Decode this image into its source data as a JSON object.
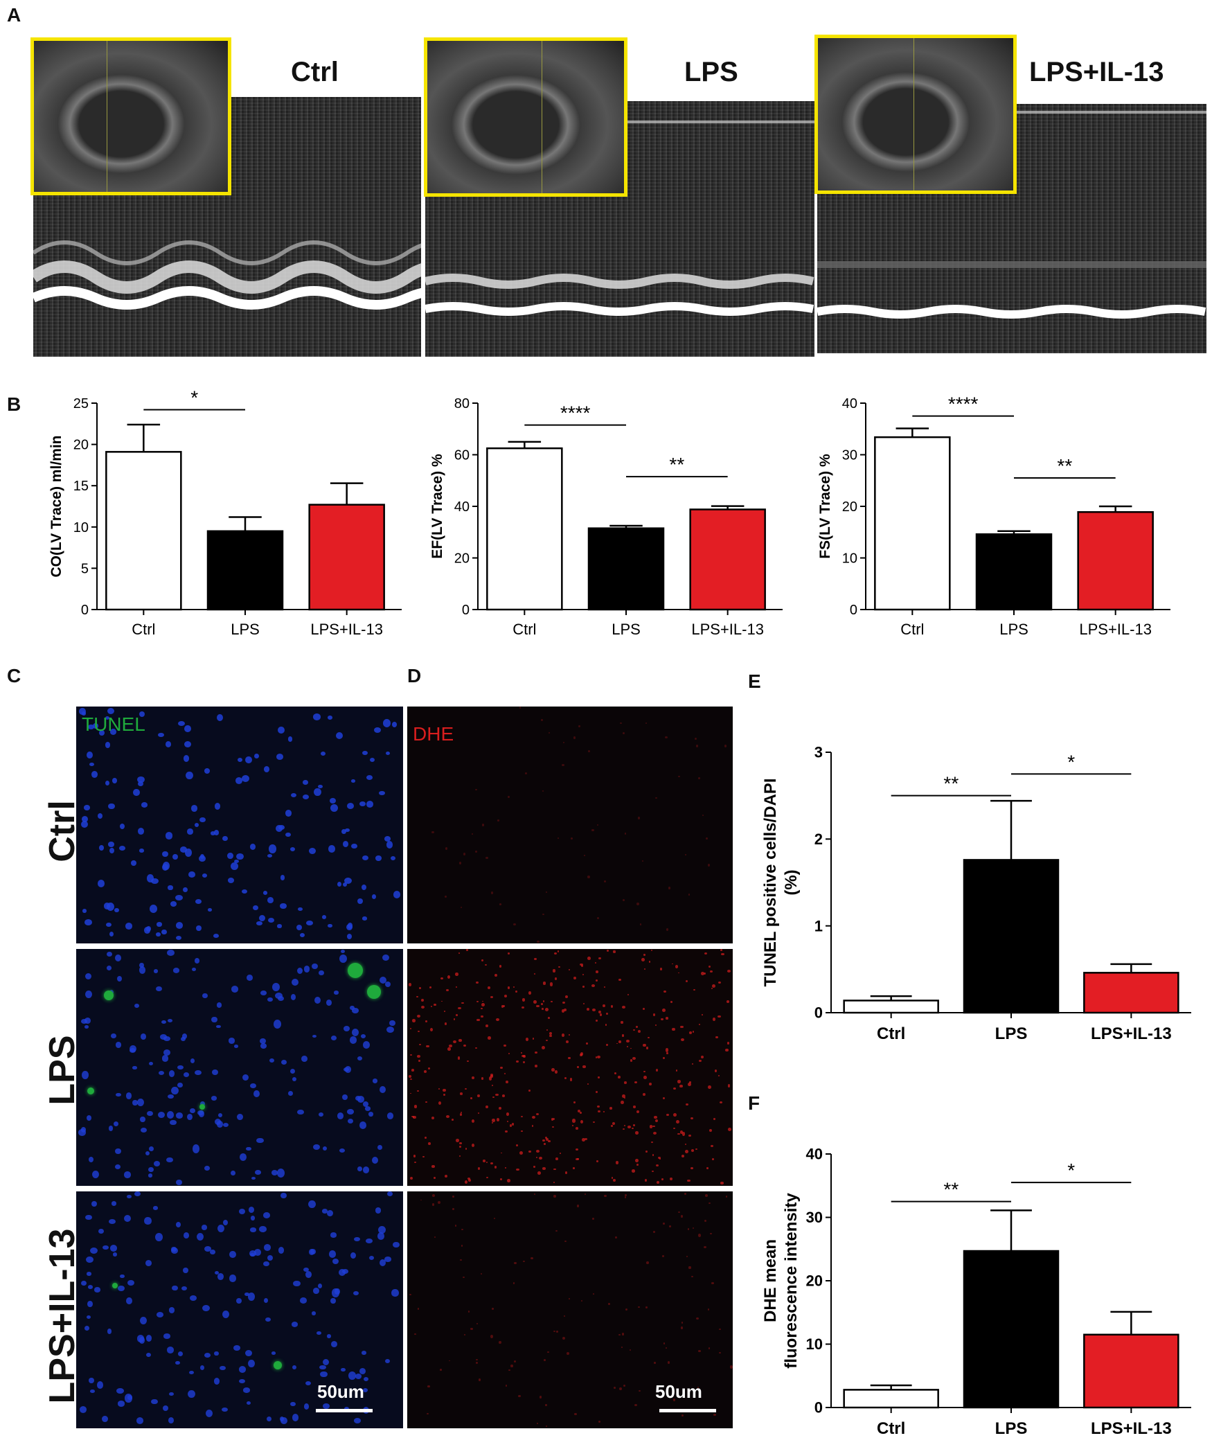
{
  "panels": {
    "A": "A",
    "B": "B",
    "C": "C",
    "D": "D",
    "E": "E",
    "F": "F"
  },
  "echo": {
    "labels": [
      "Ctrl",
      "LPS",
      "LPS+IL-13"
    ]
  },
  "micro": {
    "tunel_label": "TUNEL",
    "dhe_label": "DHE",
    "rows": [
      "Ctrl",
      "LPS",
      "LPS+IL-13"
    ],
    "scale_bar": "50um",
    "colors": {
      "tunel": "#1faa3c",
      "dhe": "#d81e1e",
      "dapi": "#1f3fd8"
    }
  },
  "colors": {
    "ctrl": "#ffffff",
    "lps": "#000000",
    "lps_il13": "#e31e24"
  },
  "chart_data": [
    {
      "type": "bar",
      "categories": [
        "Ctrl",
        "LPS",
        "LPS+IL-13"
      ],
      "values": [
        19.1,
        9.5,
        12.7
      ],
      "errors": [
        3.3,
        1.7,
        2.6
      ],
      "ylabel": "CO(LV Trace) ml/min",
      "ylim": [
        0,
        25
      ],
      "yticks": [
        0,
        5,
        10,
        15,
        20,
        25
      ],
      "significance": [
        {
          "from": 0,
          "to": 1,
          "label": "*",
          "y": 24.2
        }
      ]
    },
    {
      "type": "bar",
      "categories": [
        "Ctrl",
        "LPS",
        "LPS+IL-13"
      ],
      "values": [
        62.5,
        31.5,
        38.8
      ],
      "errors": [
        2.5,
        1.0,
        1.3
      ],
      "ylabel": "EF(LV Trace) %",
      "ylim": [
        0,
        80
      ],
      "yticks": [
        0,
        20,
        40,
        60,
        80
      ],
      "significance": [
        {
          "from": 0,
          "to": 1,
          "label": "****",
          "y": 71.5
        },
        {
          "from": 1,
          "to": 2,
          "label": "**",
          "y": 51.5
        }
      ]
    },
    {
      "type": "bar",
      "categories": [
        "Ctrl",
        "LPS",
        "LPS+IL-13"
      ],
      "values": [
        33.4,
        14.6,
        18.9
      ],
      "errors": [
        1.7,
        0.6,
        1.1
      ],
      "ylabel": "FS(LV Trace) %",
      "ylim": [
        0,
        40
      ],
      "yticks": [
        0,
        10,
        20,
        30,
        40
      ],
      "significance": [
        {
          "from": 0,
          "to": 1,
          "label": "****",
          "y": 37.5
        },
        {
          "from": 1,
          "to": 2,
          "label": "**",
          "y": 25.5
        }
      ]
    },
    {
      "type": "bar",
      "categories": [
        "Ctrl",
        "LPS",
        "LPS+IL-13"
      ],
      "values": [
        0.14,
        1.76,
        0.46
      ],
      "errors": [
        0.05,
        0.68,
        0.1
      ],
      "ylabel": [
        "TUNEL positive cells/DAPI",
        "(%)"
      ],
      "ylim": [
        0,
        3
      ],
      "yticks": [
        0,
        1,
        2,
        3
      ],
      "bold": true,
      "significance": [
        {
          "from": 0,
          "to": 1,
          "label": "**",
          "y": 2.5
        },
        {
          "from": 1,
          "to": 2,
          "label": "*",
          "y": 2.75
        }
      ]
    },
    {
      "type": "bar",
      "categories": [
        "Ctrl",
        "LPS",
        "LPS+IL-13"
      ],
      "values": [
        2.8,
        24.7,
        11.5
      ],
      "errors": [
        0.7,
        6.4,
        3.6
      ],
      "ylabel": [
        "DHE mean",
        "fluorescence intensity"
      ],
      "ylim": [
        0,
        40
      ],
      "yticks": [
        0,
        10,
        20,
        30,
        40
      ],
      "bold": true,
      "significance": [
        {
          "from": 0,
          "to": 1,
          "label": "**",
          "y": 32.5
        },
        {
          "from": 1,
          "to": 2,
          "label": "*",
          "y": 35.5
        }
      ]
    }
  ]
}
